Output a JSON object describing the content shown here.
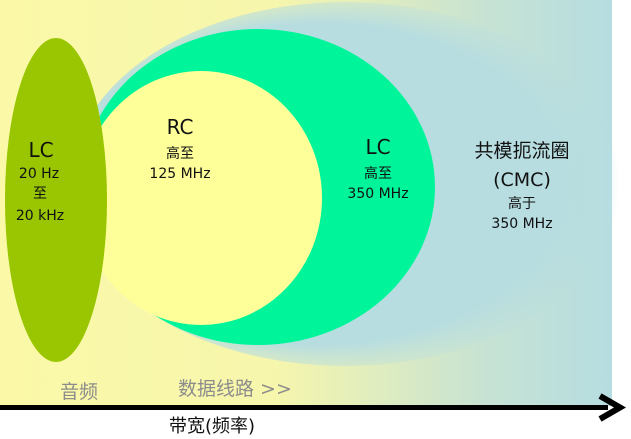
{
  "colors": {
    "background_left": "#fbf9a8",
    "background_right": "#b6dde1",
    "audio_lc": "#99c600",
    "cmc": "#b7dde1",
    "data_lc": "#00f59a",
    "rc": "#ffff99",
    "axis": "#000000",
    "zone_label": "#8c8c8c"
  },
  "regions": {
    "audio_lc": {
      "title": "LC",
      "line1": "20 Hz",
      "line2": "至",
      "line3": "20 kHz"
    },
    "rc": {
      "title": "RC",
      "line1": "高至",
      "line2": "125 MHz"
    },
    "data_lc": {
      "title": "LC",
      "line1": "高至",
      "line2": "350 MHz"
    },
    "cmc": {
      "title": "共模扼流圈",
      "subtitle": "(CMC)",
      "line1": "高于",
      "line2": "350 MHz"
    }
  },
  "zones": {
    "audio": "音频",
    "data_lines": "数据线路 >>"
  },
  "axis": {
    "label": "带宽(频率)"
  }
}
